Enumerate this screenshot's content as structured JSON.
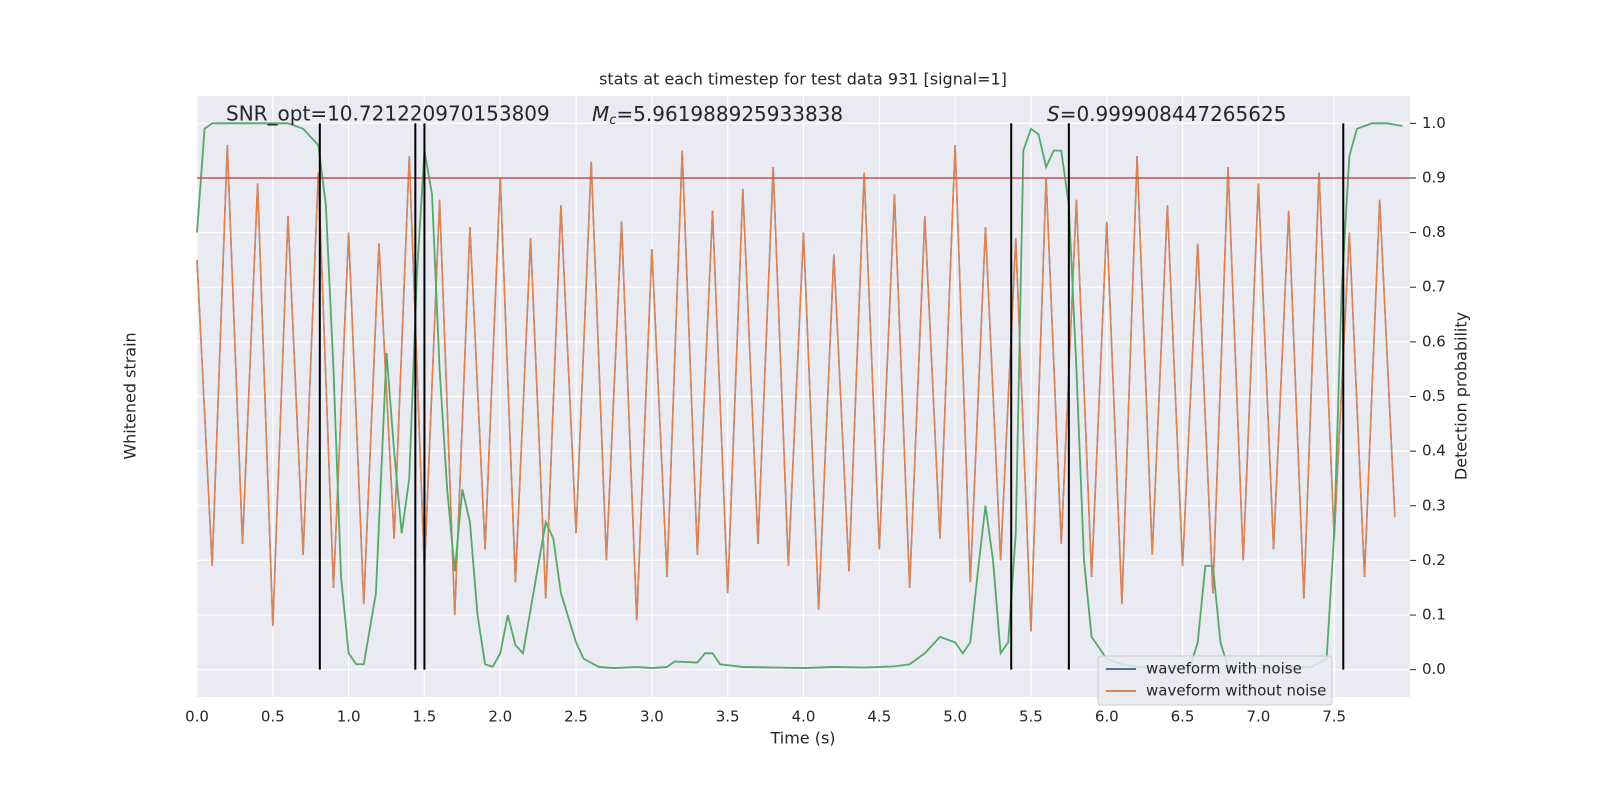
{
  "chart_data": {
    "type": "line",
    "title": "stats at each timestep for test data 931 [signal=1]",
    "xlabel": "Time (s)",
    "ylabel": "Whitened strain",
    "y2label": "Detection probability",
    "xlim": [
      0,
      8.0
    ],
    "xticks": [
      {
        "value": 0,
        "label": "0.0"
      },
      {
        "value": 0.5,
        "label": "0.5"
      },
      {
        "value": 1,
        "label": "1.0"
      },
      {
        "value": 1.5,
        "label": "1.5"
      },
      {
        "value": 2,
        "label": "2.0"
      },
      {
        "value": 2.5,
        "label": "2.5"
      },
      {
        "value": 3,
        "label": "3.0"
      },
      {
        "value": 3.5,
        "label": "3.5"
      },
      {
        "value": 4,
        "label": "4.0"
      },
      {
        "value": 4.5,
        "label": "4.5"
      },
      {
        "value": 5,
        "label": "5.0"
      },
      {
        "value": 5.5,
        "label": "5.5"
      },
      {
        "value": 6,
        "label": "6.0"
      },
      {
        "value": 6.5,
        "label": "6.5"
      },
      {
        "value": 7,
        "label": "7.0"
      },
      {
        "value": 7.5,
        "label": "7.5"
      }
    ],
    "ylim": [
      -5.5,
      5.5
    ],
    "y2lim": [
      -0.05,
      1.05
    ],
    "y2ticks": [
      {
        "value": 0,
        "label": "0.0"
      },
      {
        "value": 0.1,
        "label": "0.1"
      },
      {
        "value": 0.2,
        "label": "0.2"
      },
      {
        "value": 0.3,
        "label": "0.3"
      },
      {
        "value": 0.4,
        "label": "0.4"
      },
      {
        "value": 0.5,
        "label": "0.5"
      },
      {
        "value": 0.6,
        "label": "0.6"
      },
      {
        "value": 0.7,
        "label": "0.7"
      },
      {
        "value": 0.8,
        "label": "0.8"
      },
      {
        "value": 0.9,
        "label": "0.9"
      },
      {
        "value": 1,
        "label": "1.0"
      }
    ],
    "grid": true,
    "legend": "lower right",
    "annotations": {
      "snr": "SNR_opt=10.721220970153809",
      "mc_symbol": "M",
      "mc_sub": "c",
      "mc_text": "=5.961988925933838",
      "s_symbol": "S",
      "s_text": "=0.999908447265625"
    },
    "series": [
      {
        "name": "waveform with noise",
        "color": "#4c72b0",
        "x": [
          0.0,
          0.1,
          0.2,
          0.3,
          0.4,
          0.5,
          0.6,
          0.7,
          0.8,
          0.9,
          1.0,
          1.1,
          1.2,
          1.3,
          1.4,
          1.5,
          1.6,
          1.7,
          1.8,
          1.9,
          2.0,
          2.1,
          2.2,
          2.3,
          2.4,
          2.5,
          2.6,
          2.7,
          2.8,
          2.9,
          3.0,
          3.1,
          3.2,
          3.3,
          3.4,
          3.5,
          3.6,
          3.7,
          3.8,
          3.9,
          4.0,
          4.1,
          4.2,
          4.3,
          4.4,
          4.5,
          4.6,
          4.7,
          4.8,
          4.9,
          5.0,
          5.1,
          5.2,
          5.3,
          5.4,
          5.5,
          5.6,
          5.7,
          5.8,
          5.9,
          6.0,
          6.1,
          6.2,
          6.3,
          6.4,
          6.5,
          6.6,
          6.7,
          6.8,
          6.9,
          7.0,
          7.1,
          7.2,
          7.3,
          7.4,
          7.5,
          7.6,
          7.7,
          7.8,
          7.9
        ],
        "values": [
          2.5,
          -3.1,
          4.6,
          -2.7,
          3.9,
          -4.2,
          3.3,
          -2.9,
          4.1,
          -3.5,
          3.0,
          -3.8,
          2.8,
          -2.6,
          4.4,
          -3.2,
          3.6,
          -4.0,
          3.1,
          -2.8,
          4.0,
          -3.4,
          2.9,
          -3.7,
          3.5,
          -2.5,
          4.3,
          -3.0,
          3.2,
          -4.1,
          2.7,
          -3.3,
          4.5,
          -2.9,
          3.4,
          -3.6,
          3.8,
          -2.7,
          4.2,
          -3.1,
          3.0,
          -3.9,
          2.6,
          -3.2,
          4.1,
          -2.8,
          3.7,
          -3.5,
          3.3,
          -2.6,
          4.6,
          -3.4,
          3.1,
          -3.0,
          2.9,
          -4.3,
          4.0,
          -2.7,
          3.6,
          -3.3,
          3.2,
          -3.8,
          4.4,
          -2.9,
          3.5,
          -3.1,
          2.8,
          -3.6,
          4.2,
          -3.0,
          3.9,
          -2.8,
          3.4,
          -3.7,
          4.1,
          -2.6,
          3.0,
          -3.3,
          3.6,
          -2.2
        ]
      },
      {
        "name": "waveform without noise",
        "color": "#dd8452",
        "x": [
          0.0,
          0.1,
          0.2,
          0.3,
          0.4,
          0.5,
          0.6,
          0.7,
          0.8,
          0.9,
          1.0,
          1.1,
          1.2,
          1.3,
          1.4,
          1.5,
          1.6,
          1.7,
          1.8,
          1.9,
          2.0,
          2.1,
          2.2,
          2.3,
          2.4,
          2.5,
          2.6,
          2.7,
          2.8,
          2.9,
          3.0,
          3.1,
          3.2,
          3.3,
          3.4,
          3.5,
          3.6,
          3.7,
          3.8,
          3.9,
          4.0,
          4.1,
          4.2,
          4.3,
          4.4,
          4.5,
          4.6,
          4.7,
          4.8,
          4.9,
          5.0,
          5.1,
          5.2,
          5.3,
          5.4,
          5.5,
          5.6,
          5.7,
          5.8,
          5.9,
          6.0,
          6.1,
          6.2,
          6.3,
          6.4,
          6.5,
          6.6,
          6.7,
          6.8,
          6.9,
          7.0,
          7.1,
          7.2,
          7.3,
          7.4,
          7.5,
          7.6,
          7.7,
          7.8,
          7.9
        ],
        "values": [
          2.5,
          -3.1,
          4.6,
          -2.7,
          3.9,
          -4.2,
          3.3,
          -2.9,
          4.1,
          -3.5,
          3.0,
          -3.8,
          2.8,
          -2.6,
          4.4,
          -3.2,
          3.6,
          -4.0,
          3.1,
          -2.8,
          4.0,
          -3.4,
          2.9,
          -3.7,
          3.5,
          -2.5,
          4.3,
          -3.0,
          3.2,
          -4.1,
          2.7,
          -3.3,
          4.5,
          -2.9,
          3.4,
          -3.6,
          3.8,
          -2.7,
          4.2,
          -3.1,
          3.0,
          -3.9,
          2.6,
          -3.2,
          4.1,
          -2.8,
          3.7,
          -3.5,
          3.3,
          -2.6,
          4.6,
          -3.4,
          3.1,
          -3.0,
          2.9,
          -4.3,
          4.0,
          -2.7,
          3.6,
          -3.3,
          3.2,
          -3.8,
          4.4,
          -2.9,
          3.5,
          -3.1,
          2.8,
          -3.6,
          4.2,
          -3.0,
          3.9,
          -2.8,
          3.4,
          -3.7,
          4.1,
          -2.6,
          3.0,
          -3.3,
          3.6,
          -2.2
        ]
      },
      {
        "color": "#55a868",
        "axis": "y2",
        "x": [
          0.0,
          0.05,
          0.1,
          0.2,
          0.4,
          0.6,
          0.7,
          0.8,
          0.85,
          0.9,
          0.95,
          1.0,
          1.05,
          1.1,
          1.18,
          1.25,
          1.3,
          1.35,
          1.4,
          1.45,
          1.5,
          1.55,
          1.6,
          1.65,
          1.7,
          1.75,
          1.8,
          1.85,
          1.9,
          1.95,
          2.0,
          2.05,
          2.1,
          2.15,
          2.2,
          2.3,
          2.35,
          2.4,
          2.5,
          2.55,
          2.65,
          2.75,
          2.9,
          3.0,
          3.1,
          3.15,
          3.3,
          3.35,
          3.4,
          3.45,
          3.6,
          3.8,
          4.0,
          4.2,
          4.4,
          4.6,
          4.7,
          4.8,
          4.9,
          5.0,
          5.05,
          5.1,
          5.15,
          5.2,
          5.25,
          5.3,
          5.35,
          5.4,
          5.45,
          5.5,
          5.55,
          5.6,
          5.65,
          5.7,
          5.75,
          5.8,
          5.85,
          5.9,
          6.0,
          6.1,
          6.2,
          6.4,
          6.55,
          6.6,
          6.65,
          6.7,
          6.75,
          6.8,
          7.0,
          7.2,
          7.35,
          7.45,
          7.5,
          7.55,
          7.6,
          7.65,
          7.75,
          7.85,
          7.95
        ],
        "values": [
          0.8,
          0.99,
          1.0,
          1.0,
          1.0,
          1.0,
          0.99,
          0.96,
          0.85,
          0.55,
          0.17,
          0.03,
          0.01,
          0.01,
          0.14,
          0.58,
          0.4,
          0.25,
          0.35,
          0.72,
          0.95,
          0.87,
          0.55,
          0.33,
          0.18,
          0.33,
          0.27,
          0.1,
          0.01,
          0.005,
          0.03,
          0.1,
          0.045,
          0.03,
          0.11,
          0.27,
          0.24,
          0.14,
          0.05,
          0.02,
          0.005,
          0.003,
          0.005,
          0.003,
          0.005,
          0.015,
          0.013,
          0.03,
          0.03,
          0.01,
          0.005,
          0.004,
          0.003,
          0.005,
          0.004,
          0.006,
          0.01,
          0.03,
          0.06,
          0.05,
          0.03,
          0.05,
          0.18,
          0.3,
          0.2,
          0.03,
          0.05,
          0.25,
          0.95,
          0.99,
          0.98,
          0.92,
          0.95,
          0.95,
          0.85,
          0.55,
          0.2,
          0.06,
          0.02,
          0.01,
          0.005,
          0.003,
          0.005,
          0.05,
          0.19,
          0.19,
          0.05,
          0.005,
          0.003,
          0.003,
          0.005,
          0.02,
          0.25,
          0.7,
          0.94,
          0.99,
          1.0,
          1.0,
          0.995
        ]
      }
    ],
    "hline": {
      "value": 0.9,
      "color": "#c44e52"
    },
    "vlines": [
      0.81,
      1.44,
      1.5,
      5.37,
      5.75,
      7.56
    ]
  }
}
